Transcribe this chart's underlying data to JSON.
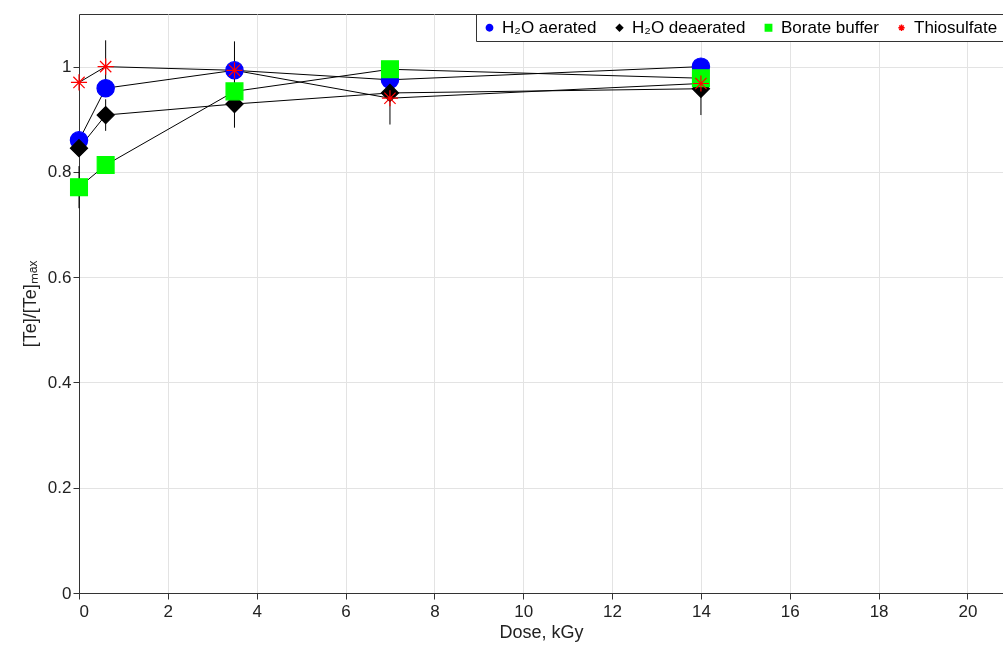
{
  "chart_data": {
    "type": "line",
    "xlabel": "Dose, kGy",
    "ylabel": "[Te]/[Te]ₘₐₓ",
    "xlim": [
      0,
      20.8
    ],
    "xticks": [
      0,
      2,
      4,
      6,
      8,
      10,
      12,
      14,
      16,
      18,
      20
    ],
    "ylim": [
      0,
      1.1
    ],
    "yticks": [
      0,
      0.2,
      0.4,
      0.6,
      0.8,
      1
    ],
    "grid": true,
    "legend": "top right",
    "series": [
      {
        "name": "H₂O aerated",
        "color": "#0000ff",
        "marker": "circle",
        "x": [
          0,
          0.6,
          3.5,
          7,
          14
        ],
        "values": [
          0.86,
          0.959,
          0.993,
          0.975,
          1.0
        ]
      },
      {
        "name": "H₂O deaerated",
        "color": "#000000",
        "marker": "diamond",
        "x": [
          0,
          0.6,
          3.5,
          7,
          14
        ],
        "values": [
          0.845,
          0.908,
          0.929,
          0.95,
          0.958
        ],
        "errors": [
          null,
          0.03,
          0.045,
          0.06,
          0.05
        ]
      },
      {
        "name": "Borate buffer",
        "color": "#00ff00",
        "marker": "square",
        "x": [
          0,
          0.6,
          3.5,
          7,
          14
        ],
        "values": [
          0.771,
          0.813,
          0.953,
          0.995,
          0.978
        ],
        "errors": [
          0.04,
          null,
          null,
          null,
          null
        ]
      },
      {
        "name": "Thiosulfate",
        "color": "#ff0000",
        "marker": "cross",
        "x": [
          0,
          0.6,
          3.5,
          7,
          14
        ],
        "values": [
          0.97,
          1.0,
          0.993,
          0.94,
          0.968
        ],
        "errors": [
          null,
          0.05,
          0.055,
          null,
          null
        ]
      }
    ]
  }
}
